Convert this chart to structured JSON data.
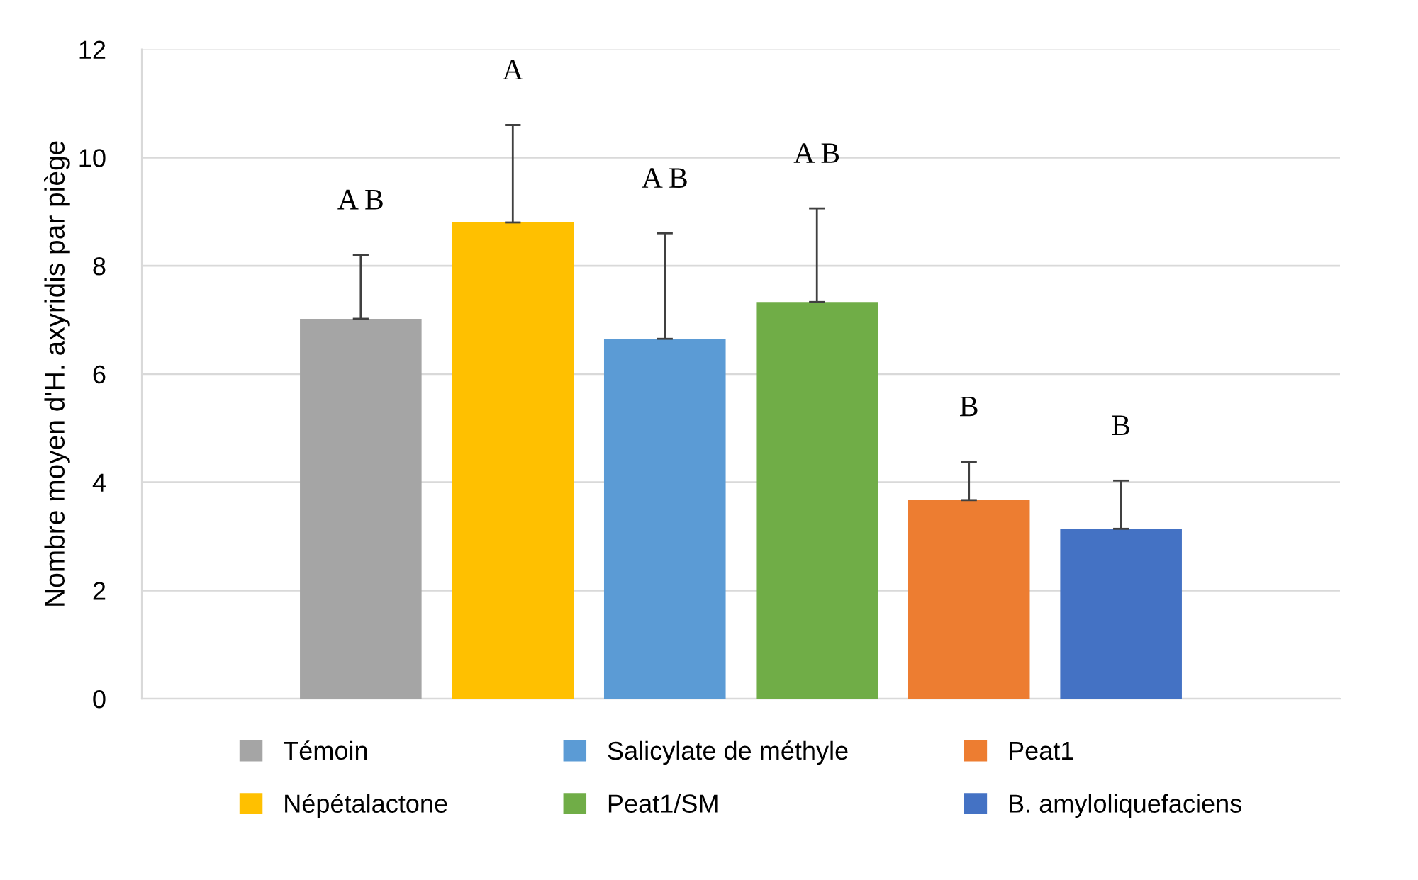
{
  "chart_data": {
    "type": "bar",
    "ylabel": "Nombre moyen d'H. axyridis par piège",
    "categories": [
      null
    ],
    "series": [
      {
        "name": "Témoin",
        "color": "#a5a5a5",
        "values": [
          7.02
        ],
        "errors": [
          [
            7.02,
            8.2
          ]
        ]
      },
      {
        "name": "Népétalactone",
        "color": "#ffc000",
        "values": [
          8.8
        ],
        "errors": [
          [
            8.8,
            10.6
          ]
        ]
      },
      {
        "name": "Salicylate de méthyle",
        "color": "#5b9bd5",
        "values": [
          6.65
        ],
        "errors": [
          [
            6.65,
            8.6
          ]
        ]
      },
      {
        "name": "Peat1/SM",
        "color": "#70ad47",
        "values": [
          7.33
        ],
        "errors": [
          [
            7.33,
            9.06
          ]
        ]
      },
      {
        "name": "Peat1",
        "color": "#ed7d31",
        "values": [
          3.67
        ],
        "errors": [
          [
            3.67,
            4.38
          ]
        ]
      },
      {
        "name": "B. amyloliquefaciens",
        "color": "#4472c4",
        "values": [
          3.14
        ],
        "errors": [
          [
            3.14,
            4.03
          ]
        ]
      }
    ],
    "annotations": [
      {
        "text": "A B",
        "y": 8.2
      },
      {
        "text": "A",
        "y": 10.6
      },
      {
        "text": "A B",
        "y": 8.6
      },
      {
        "text": "A B",
        "y": 9.06
      },
      {
        "text": "B",
        "y": 4.38
      },
      {
        "text": "B",
        "y": 4.03
      }
    ],
    "ylim": [
      0,
      12
    ],
    "yticks": [
      0,
      2,
      4,
      6,
      8,
      10,
      12
    ],
    "grid": "y",
    "legend": "bottom",
    "tick_labels": "y"
  }
}
